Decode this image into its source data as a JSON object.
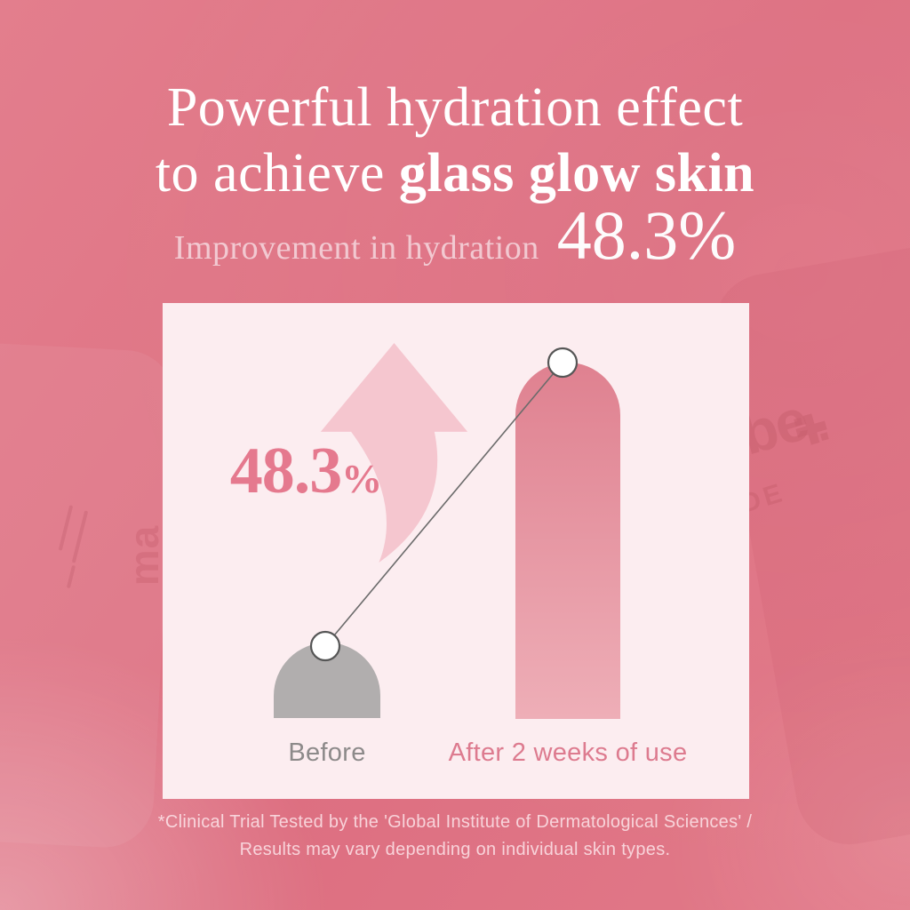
{
  "header": {
    "title_line1": "Powerful hydration effect",
    "title_line2_regular": "to achieve ",
    "title_line2_bold": "glass glow skin",
    "subtitle_label": "Improvement in hydration",
    "subtitle_value": "48.3%"
  },
  "card": {
    "highlight_value": "48.3",
    "highlight_unit": "%"
  },
  "chart_data": {
    "type": "bar",
    "title": "Improvement in hydration 48.3%",
    "categories": [
      "Before",
      "After 2 weeks of use"
    ],
    "values": [
      85,
      401
    ],
    "values_unit": "relative bar height px (no numeric axis shown)",
    "improvement_pct": 48.3,
    "annotation": "48.3%",
    "bar_colors_top": [
      "#b1aeae",
      "#df8190"
    ],
    "bar_colors_bottom": [
      "#b1aeae",
      "#eeaeb7"
    ],
    "label_colors": [
      "#8d8a8a",
      "#dd7b8f"
    ],
    "grid": false,
    "legend_position": "none",
    "markers": "white circles joined by thin gray trend line"
  },
  "footnote": {
    "line1": "*Clinical Trial Tested by the 'Global Institute of Dermatological Sciences' /",
    "line2": "Results may vary depending on individual skin types."
  },
  "background_branding": {
    "bottle_logo_text": "be",
    "bottle_side_text": "IDE",
    "left_bottle_text": "ma"
  },
  "colors": {
    "background_base": "#df7384",
    "card_background": "#fcedf0",
    "arrow_pink": "#f5c6cf",
    "highlight_pink": "#e5798e",
    "subtitle_pink": "#f2c9d1",
    "title_white": "#ffffff",
    "connector_gray": "#6b6b6b"
  }
}
